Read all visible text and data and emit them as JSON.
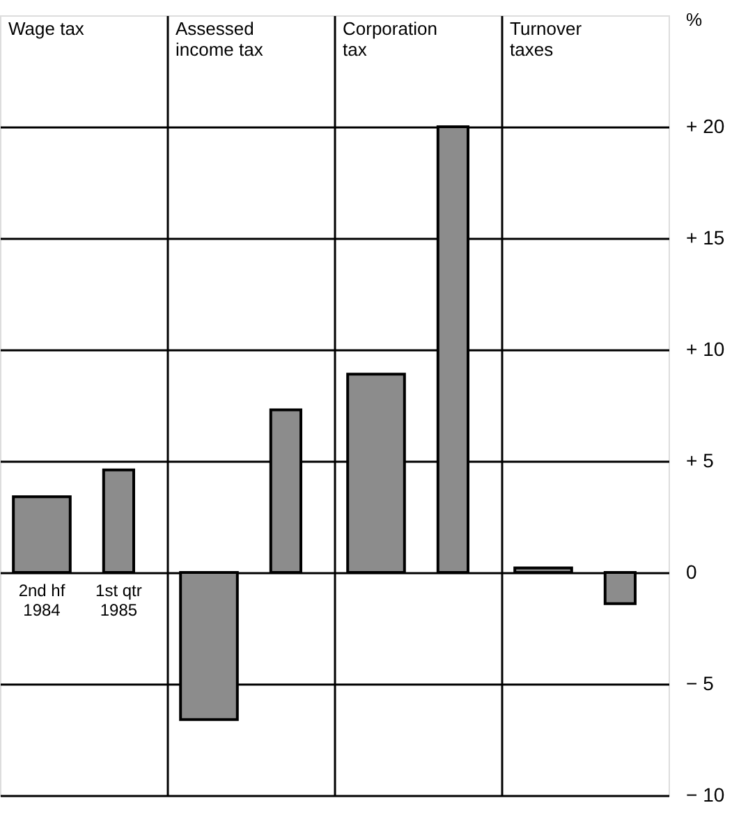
{
  "chart_data": {
    "type": "bar",
    "categories": [
      "Wage tax",
      "Assessed income tax",
      "Corporation tax",
      "Turnover taxes"
    ],
    "series": [
      {
        "name": "2nd hf 1984",
        "color": "#8c8c8c",
        "values": [
          3.4,
          -6.6,
          8.9,
          0.2
        ]
      },
      {
        "name": "1st qtr 1985",
        "color": "#8c8c8c",
        "values": [
          4.6,
          7.3,
          20,
          -1.4
        ]
      }
    ],
    "ylabel": "%",
    "ylim": [
      -10,
      25
    ],
    "yticks": [
      {
        "value": -10,
        "label": "− 10"
      },
      {
        "value": -5,
        "label": "− 5"
      },
      0,
      {
        "value": 5,
        "label": "+ 5"
      },
      {
        "value": 10,
        "label": "+ 10"
      },
      {
        "value": 15,
        "label": "+ 15"
      },
      {
        "value": 20,
        "label": "+ 20"
      }
    ],
    "grid": true,
    "tick_labels": "y"
  }
}
